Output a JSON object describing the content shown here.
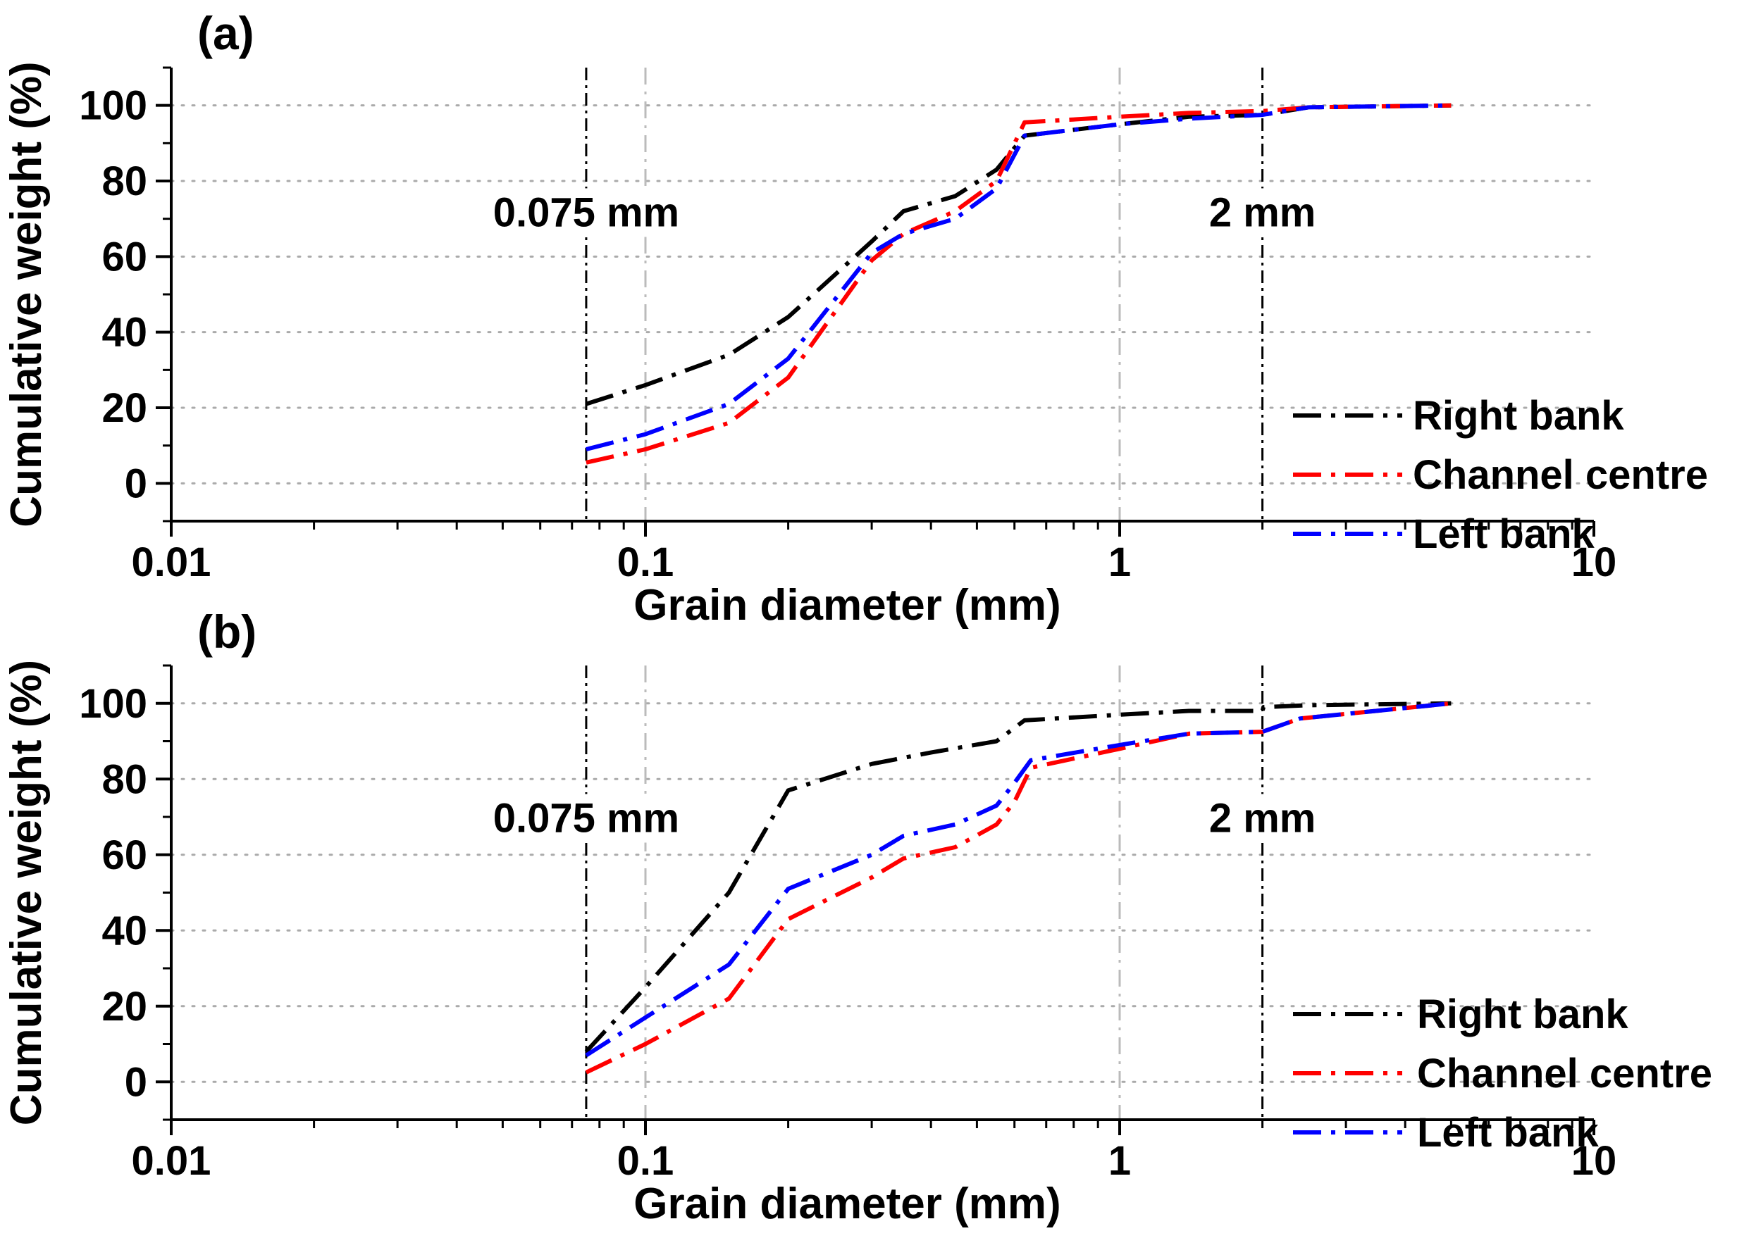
{
  "chart_data": [
    {
      "type": "line",
      "panel_label": "(a)",
      "xscale": "log",
      "xlim": [
        0.01,
        10
      ],
      "ylim": [
        -10,
        110
      ],
      "xlabel": "Grain diameter (mm)",
      "ylabel": "Cumulative weight (%)",
      "x_ticks": [
        {
          "value": 0.01,
          "label": "0.01"
        },
        {
          "value": 0.1,
          "label": "0.1"
        },
        {
          "value": 1,
          "label": "1"
        },
        {
          "value": 10,
          "label": "10"
        }
      ],
      "y_ticks": [
        {
          "value": 0,
          "label": "0"
        },
        {
          "value": 20,
          "label": "20"
        },
        {
          "value": 40,
          "label": "40"
        },
        {
          "value": 60,
          "label": "60"
        },
        {
          "value": 80,
          "label": "80"
        },
        {
          "value": 100,
          "label": "100"
        }
      ],
      "grid": true,
      "reference_lines": [
        {
          "x": 0.075,
          "label": "0.075 mm",
          "label_y": 68
        },
        {
          "x": 2,
          "label": "2 mm",
          "label_y": 68
        }
      ],
      "legend_position": "bottom-right",
      "series": [
        {
          "name": "Right bank",
          "color": "#000000",
          "x": [
            0.075,
            0.1,
            0.15,
            0.2,
            0.3,
            0.35,
            0.45,
            0.55,
            0.63,
            1,
            1.4,
            2,
            2.5,
            5
          ],
          "y": [
            21,
            26,
            34,
            44,
            64,
            72,
            76,
            83,
            92,
            95,
            97,
            97.5,
            99.5,
            100
          ]
        },
        {
          "name": "Channel centre",
          "color": "#ff0000",
          "x": [
            0.075,
            0.1,
            0.15,
            0.2,
            0.3,
            0.35,
            0.45,
            0.55,
            0.63,
            1,
            1.4,
            2,
            2.5,
            5
          ],
          "y": [
            5.5,
            9,
            16,
            28,
            59,
            66,
            72,
            80,
            95.5,
            97,
            98,
            98.5,
            99.5,
            100
          ]
        },
        {
          "name": "Left bank",
          "color": "#0000ff",
          "x": [
            0.075,
            0.1,
            0.15,
            0.2,
            0.3,
            0.35,
            0.45,
            0.55,
            0.63,
            1,
            1.4,
            2,
            2.5,
            5
          ],
          "y": [
            9,
            13,
            21,
            33,
            61,
            66,
            70,
            78,
            92,
            95,
            96.5,
            97.5,
            99.5,
            100
          ]
        }
      ]
    },
    {
      "type": "line",
      "panel_label": "(b)",
      "xscale": "log",
      "xlim": [
        0.01,
        10
      ],
      "ylim": [
        -10,
        110
      ],
      "xlabel": "Grain diameter (mm)",
      "ylabel": "Cumulative weight (%)",
      "x_ticks": [
        {
          "value": 0.01,
          "label": "0.01"
        },
        {
          "value": 0.1,
          "label": "0.1"
        },
        {
          "value": 1,
          "label": "1"
        },
        {
          "value": 10,
          "label": "10"
        }
      ],
      "y_ticks": [
        {
          "value": 0,
          "label": "0"
        },
        {
          "value": 20,
          "label": "20"
        },
        {
          "value": 40,
          "label": "40"
        },
        {
          "value": 60,
          "label": "60"
        },
        {
          "value": 80,
          "label": "80"
        },
        {
          "value": 100,
          "label": "100"
        }
      ],
      "grid": true,
      "reference_lines": [
        {
          "x": 0.075,
          "label": "0.075 mm",
          "label_y": 66
        },
        {
          "x": 2,
          "label": "2 mm",
          "label_y": 66
        }
      ],
      "legend_position": "bottom-right",
      "series": [
        {
          "name": "Right bank",
          "color": "#000000",
          "x": [
            0.075,
            0.1,
            0.15,
            0.2,
            0.3,
            0.4,
            0.55,
            0.63,
            1,
            1.4,
            2,
            2.01,
            2.5,
            5
          ],
          "y": [
            8,
            25,
            50,
            77,
            84,
            87,
            90,
            95.5,
            97,
            98,
            98,
            99,
            99.5,
            100
          ]
        },
        {
          "name": "Channel centre",
          "color": "#ff0000",
          "x": [
            0.075,
            0.1,
            0.15,
            0.2,
            0.3,
            0.35,
            0.45,
            0.55,
            0.6,
            0.65,
            1,
            1.4,
            2,
            2.4,
            5
          ],
          "y": [
            2.5,
            10,
            22,
            43,
            54,
            59,
            62,
            68,
            74,
            83,
            88,
            92,
            92.5,
            96,
            100
          ]
        },
        {
          "name": "Left bank",
          "color": "#0000ff",
          "x": [
            0.075,
            0.1,
            0.15,
            0.2,
            0.3,
            0.35,
            0.45,
            0.55,
            0.6,
            0.65,
            1,
            1.4,
            2,
            2.4,
            5
          ],
          "y": [
            7,
            17,
            31,
            51,
            60,
            65,
            68,
            73,
            79,
            85,
            89,
            92,
            92.5,
            96,
            100
          ]
        }
      ]
    }
  ]
}
